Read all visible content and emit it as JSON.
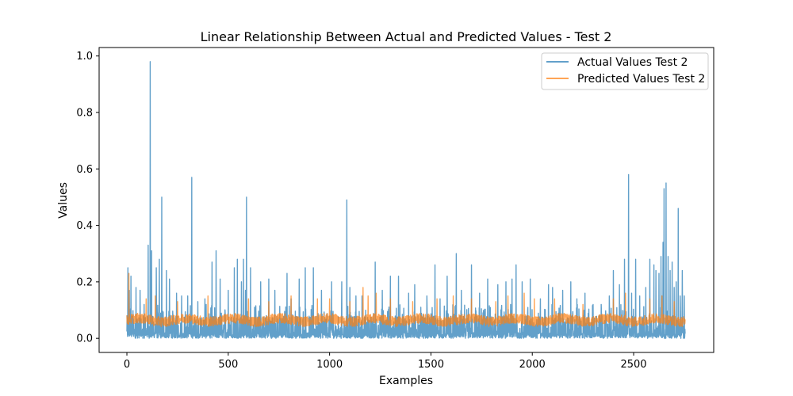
{
  "chart_data": {
    "type": "line",
    "title": "Linear Relationship Between Actual and Predicted Values - Test 2",
    "xlabel": "Examples",
    "ylabel": "Values",
    "xlim": [
      -137,
      2895
    ],
    "ylim": [
      -0.05,
      1.03
    ],
    "xticks": [
      0,
      500,
      1000,
      1500,
      2000,
      2500
    ],
    "yticks": [
      0.0,
      0.2,
      0.4,
      0.6,
      0.8,
      1.0
    ],
    "xtick_labels": [
      "0",
      "500",
      "1000",
      "1500",
      "2000",
      "2500"
    ],
    "ytick_labels": [
      "0.0",
      "0.2",
      "0.4",
      "0.6",
      "0.8",
      "1.0"
    ],
    "n_points": 2755,
    "grid": false,
    "legend_position": "top-right",
    "series": [
      {
        "name": "Actual Values Test 2",
        "color": "#1f77b4",
        "opacity": 0.7,
        "base_level": 0.05,
        "noise_max": 0.12,
        "x": [
          5,
          12,
          20,
          45,
          65,
          85,
          105,
          115,
          122,
          145,
          160,
          172,
          195,
          210,
          245,
          270,
          300,
          320,
          350,
          385,
          420,
          440,
          460,
          500,
          530,
          545,
          565,
          575,
          585,
          590,
          610,
          630,
          660,
          700,
          730,
          790,
          810,
          850,
          880,
          920,
          960,
          1010,
          1060,
          1085,
          1100,
          1130,
          1160,
          1225,
          1260,
          1300,
          1340,
          1390,
          1420,
          1450,
          1480,
          1520,
          1545,
          1580,
          1625,
          1650,
          1700,
          1740,
          1780,
          1830,
          1870,
          1900,
          1920,
          1950,
          1990,
          2040,
          2080,
          2100,
          2150,
          2190,
          2220,
          2260,
          2300,
          2340,
          2380,
          2400,
          2430,
          2455,
          2475,
          2490,
          2510,
          2530,
          2560,
          2580,
          2600,
          2610,
          2625,
          2635,
          2645,
          2650,
          2660,
          2670,
          2680,
          2690,
          2700,
          2710,
          2720,
          2730,
          2740,
          2750
        ],
        "peaks": [
          0.25,
          0.17,
          0.22,
          0.18,
          0.17,
          0.12,
          0.33,
          0.98,
          0.31,
          0.25,
          0.28,
          0.5,
          0.24,
          0.21,
          0.16,
          0.15,
          0.15,
          0.57,
          0.13,
          0.14,
          0.27,
          0.31,
          0.21,
          0.17,
          0.25,
          0.28,
          0.2,
          0.28,
          0.17,
          0.5,
          0.25,
          0.11,
          0.2,
          0.21,
          0.17,
          0.23,
          0.14,
          0.21,
          0.25,
          0.25,
          0.17,
          0.2,
          0.2,
          0.49,
          0.18,
          0.15,
          0.15,
          0.27,
          0.17,
          0.22,
          0.22,
          0.16,
          0.19,
          0.11,
          0.15,
          0.26,
          0.14,
          0.22,
          0.3,
          0.17,
          0.26,
          0.16,
          0.21,
          0.19,
          0.2,
          0.21,
          0.26,
          0.2,
          0.21,
          0.14,
          0.19,
          0.18,
          0.17,
          0.2,
          0.14,
          0.16,
          0.12,
          0.12,
          0.15,
          0.24,
          0.19,
          0.28,
          0.58,
          0.16,
          0.28,
          0.15,
          0.18,
          0.28,
          0.26,
          0.24,
          0.23,
          0.29,
          0.34,
          0.53,
          0.55,
          0.29,
          0.24,
          0.27,
          0.18,
          0.2,
          0.46,
          0.15,
          0.24,
          0.15
        ]
      },
      {
        "name": "Predicted Values Test 2",
        "color": "#ff7f0e",
        "opacity": 0.7,
        "base_level": 0.065,
        "noise_max": 0.035,
        "x": [
          10,
          95,
          140,
          250,
          400,
          600,
          700,
          810,
          940,
          1000,
          1100,
          1165,
          1190,
          1230,
          1300,
          1410,
          1530,
          1610,
          1700,
          1820,
          1880,
          1960,
          2010,
          2110,
          2250,
          2400,
          2460,
          2580,
          2640,
          2700
        ],
        "peaks": [
          0.23,
          0.14,
          0.15,
          0.13,
          0.15,
          0.14,
          0.13,
          0.15,
          0.14,
          0.14,
          0.13,
          0.18,
          0.15,
          0.16,
          0.14,
          0.13,
          0.14,
          0.15,
          0.14,
          0.13,
          0.15,
          0.16,
          0.14,
          0.14,
          0.12,
          0.14,
          0.16,
          0.14,
          0.15,
          0.13
        ]
      }
    ]
  }
}
